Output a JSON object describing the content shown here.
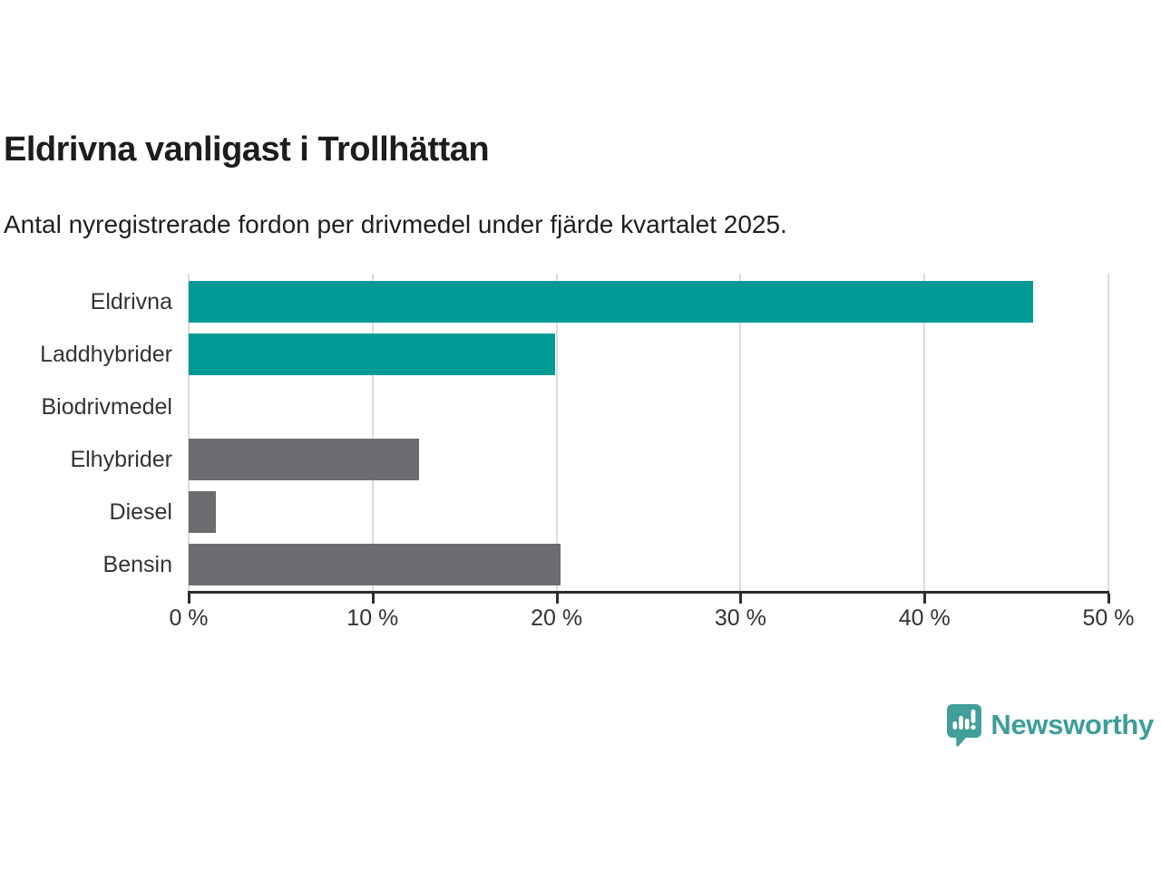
{
  "header": {
    "title": "Eldrivna vanligast i Trollhättan",
    "subtitle": "Antal nyregistrerade fordon per drivmedel under fjärde kvartalet 2025."
  },
  "chart_data": {
    "type": "bar",
    "orientation": "horizontal",
    "title": "Eldrivna vanligast i Trollhättan",
    "subtitle": "Antal nyregistrerade fordon per drivmedel under fjärde kvartalet 2025.",
    "categories": [
      "Eldrivna",
      "Laddhybrider",
      "Biodrivmedel",
      "Elhybrider",
      "Diesel",
      "Bensin"
    ],
    "values": [
      45.9,
      19.9,
      0,
      12.5,
      1.5,
      20.2
    ],
    "unit": "%",
    "bar_colors": [
      "#009a94",
      "#009a94",
      "#6c6c71",
      "#6c6c71",
      "#6c6c71",
      "#6c6c71"
    ],
    "highlight_color": "#009a94",
    "default_color": "#6c6c71",
    "xlabel": "",
    "ylabel": "",
    "xlim": [
      0,
      50
    ],
    "x_tick_values": [
      0,
      10,
      20,
      30,
      40,
      50
    ],
    "x_tick_labels": [
      "0 %",
      "10 %",
      "20 %",
      "30 %",
      "40 %",
      "50 %"
    ],
    "grid": "vertical-gridlines",
    "gridline_color": "#dcdcdc",
    "axis_color": "#2d2d2d",
    "legend": "none"
  },
  "footer": {
    "brand": "Newsworthy",
    "brand_color": "#3d9e99",
    "logo_icon": "bar-chart-speech-bubble-icon"
  }
}
